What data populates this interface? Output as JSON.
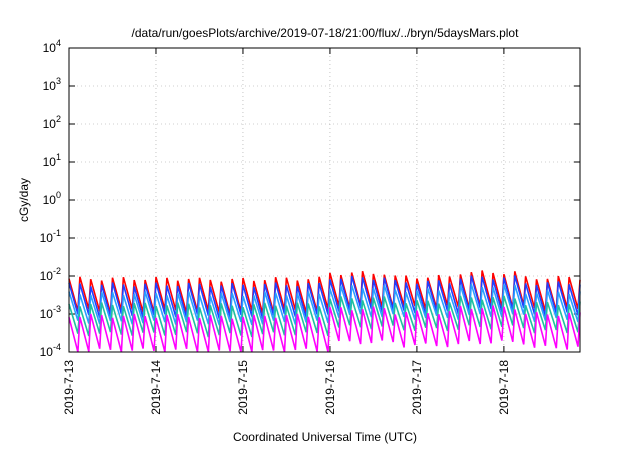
{
  "chart_data": {
    "type": "line",
    "title": "/data/run/goesPlots/archive/2019-07-18/21:00/flux/../bryn/5daysMars.plot",
    "xlabel": "Coordinated Universal Time (UTC)",
    "ylabel": "cGy/day",
    "yscale": "log",
    "ylim": [
      0.0001,
      10000
    ],
    "xlim": [
      "2019-07-13 00:00",
      "2019-07-18 21:00"
    ],
    "grid": true,
    "x_ticks": [
      "2019-7-13",
      "2019-7-14",
      "2019-7-15",
      "2019-7-16",
      "2019-7-17",
      "2019-7-18"
    ],
    "y_ticks": [
      {
        "base": "10",
        "exp": "-4"
      },
      {
        "base": "10",
        "exp": "-3"
      },
      {
        "base": "10",
        "exp": "-2"
      },
      {
        "base": "10",
        "exp": "-1"
      },
      {
        "base": "10",
        "exp": "0"
      },
      {
        "base": "10",
        "exp": "1"
      },
      {
        "base": "10",
        "exp": "2"
      },
      {
        "base": "10",
        "exp": "3"
      },
      {
        "base": "10",
        "exp": "4"
      }
    ],
    "sawtooth_period_hours": 3,
    "series": [
      {
        "color": "#ff0000",
        "peaks": [
          0.0085,
          0.0085,
          0.008,
          0.0085,
          0.012,
          0.0095,
          0.0125,
          0.009
        ],
        "troughs": [
          0.0012,
          0.0012,
          0.0011,
          0.0012,
          0.0016,
          0.0015,
          0.0016,
          0.0013
        ]
      },
      {
        "color": "#1f3fff",
        "peaks": [
          0.006,
          0.006,
          0.0058,
          0.006,
          0.009,
          0.007,
          0.0092,
          0.0065
        ],
        "troughs": [
          0.0009,
          0.0009,
          0.00085,
          0.0009,
          0.0013,
          0.0011,
          0.0013,
          0.001
        ]
      },
      {
        "color": "#2aa0ff",
        "peaks": [
          0.0035,
          0.0035,
          0.0033,
          0.0035,
          0.0052,
          0.0042,
          0.0055,
          0.0038
        ],
        "troughs": [
          0.0006,
          0.0006,
          0.00057,
          0.0006,
          0.0009,
          0.0008,
          0.0009,
          0.0007
        ]
      },
      {
        "color": "#20c0a0",
        "peaks": [
          0.0018,
          0.0018,
          0.0017,
          0.0018,
          0.0026,
          0.0021,
          0.0027,
          0.0019
        ],
        "troughs": [
          0.0003,
          0.0003,
          0.00028,
          0.0003,
          0.00045,
          0.0004,
          0.00045,
          0.00035
        ]
      },
      {
        "color": "#ff00ff",
        "peaks": [
          0.0009,
          0.0009,
          0.00085,
          0.0009,
          0.0014,
          0.0011,
          0.0015,
          0.001
        ],
        "troughs": [
          0.00011,
          0.00011,
          0.0001,
          0.00011,
          0.00018,
          0.00015,
          0.00018,
          0.00013
        ]
      }
    ]
  }
}
